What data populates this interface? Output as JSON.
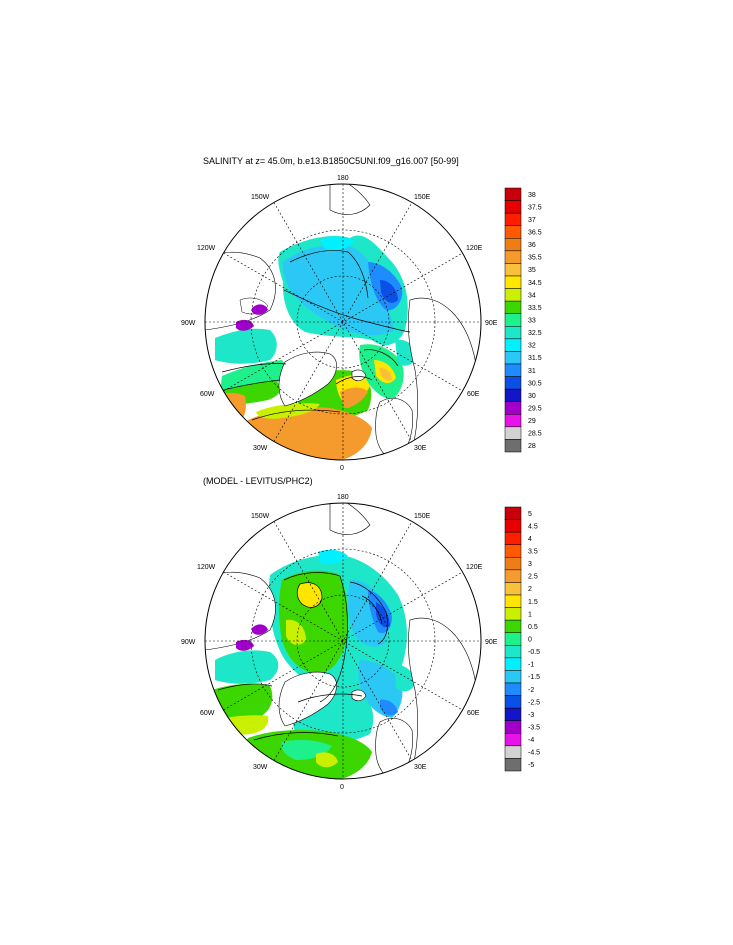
{
  "panels": [
    {
      "title": "SALINITY at z=  45.0m, b.e13.B1850C5UNI.f09_g16.007 [50-99]",
      "longitude_labels": {
        "north": "180",
        "south": "0",
        "west": "90W",
        "east": "90E",
        "nw1": "150W",
        "nw2": "120W",
        "sw1": "60W",
        "sw2": "30W",
        "ne1": "150E",
        "ne2": "120E",
        "se1": "60E",
        "se2": "30E"
      },
      "colorbar": {
        "labels": [
          "38",
          "37.5",
          "37",
          "36.5",
          "36",
          "35.5",
          "35",
          "34.5",
          "34",
          "33.5",
          "33",
          "32.5",
          "32",
          "31.5",
          "31",
          "30.5",
          "30",
          "29.5",
          "29",
          "28.5",
          "28"
        ],
        "colors": [
          "#c8000a",
          "#e60000",
          "#ff1e00",
          "#ff5a00",
          "#ef7d16",
          "#f59b2d",
          "#fac03c",
          "#ffe600",
          "#c8f000",
          "#3cd700",
          "#1ef08c",
          "#1ee6c8",
          "#00f0ff",
          "#2cc8f5",
          "#1e8cff",
          "#0a50e6",
          "#1414c8",
          "#a000c8",
          "#e614e6",
          "#d2d2d2",
          "#6e6e6e"
        ]
      }
    },
    {
      "title": "(MODEL - LEVITUS/PHC2)",
      "longitude_labels": {
        "north": "180",
        "south": "0",
        "west": "90W",
        "east": "90E",
        "nw1": "150W",
        "nw2": "120W",
        "sw1": "60W",
        "sw2": "30W",
        "ne1": "150E",
        "ne2": "120E",
        "se1": "60E",
        "se2": "30E"
      },
      "colorbar": {
        "labels": [
          "5",
          "4.5",
          "4",
          "3.5",
          "3",
          "2.5",
          "2",
          "1.5",
          "1",
          "0.5",
          "0",
          "-0.5",
          "-1",
          "-1.5",
          "-2",
          "-2.5",
          "-3",
          "-3.5",
          "-4",
          "-4.5",
          "-5"
        ],
        "colors": [
          "#c8000a",
          "#e60000",
          "#ff1e00",
          "#ff5a00",
          "#ef7d16",
          "#f59b2d",
          "#fac03c",
          "#ffe600",
          "#c8f000",
          "#3cd700",
          "#1ef08c",
          "#1ee6c8",
          "#00f0ff",
          "#2cc8f5",
          "#1e8cff",
          "#0a50e6",
          "#1414c8",
          "#a000c8",
          "#e614e6",
          "#d2d2d2",
          "#6e6e6e"
        ]
      }
    }
  ]
}
